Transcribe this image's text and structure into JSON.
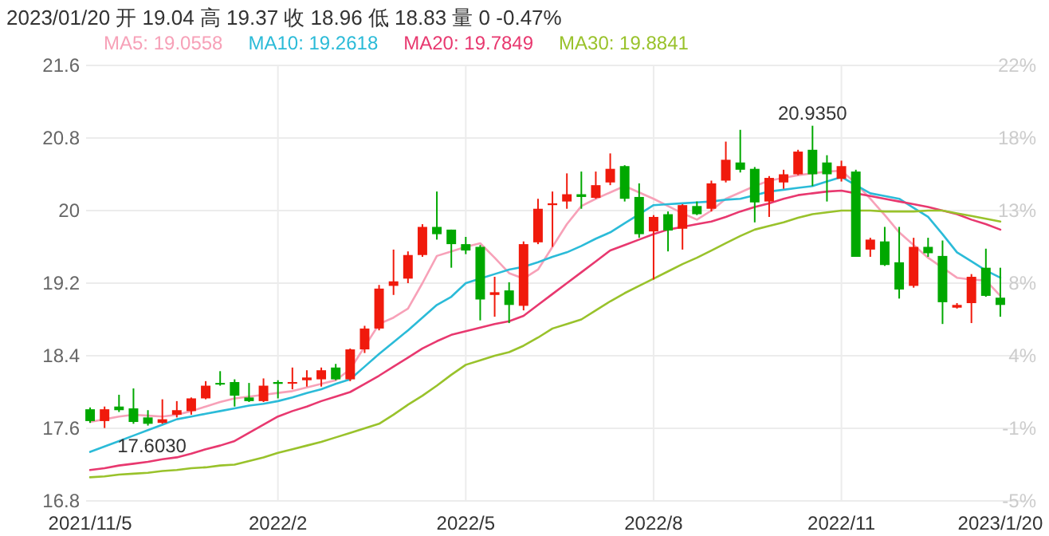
{
  "chart_data": {
    "type": "candlestick",
    "categories": [
      "2021/11/5",
      null,
      null,
      null,
      null,
      null,
      null,
      null,
      null,
      null,
      null,
      null,
      null,
      "2022/2",
      null,
      null,
      null,
      null,
      null,
      null,
      null,
      null,
      null,
      null,
      null,
      null,
      "2022/5",
      null,
      null,
      null,
      null,
      null,
      null,
      null,
      null,
      null,
      null,
      null,
      null,
      "2022/8",
      null,
      null,
      null,
      null,
      null,
      null,
      null,
      null,
      null,
      null,
      null,
      null,
      "2022/11",
      null,
      null,
      null,
      null,
      null,
      null,
      null,
      null,
      null,
      null,
      "2023/1/20"
    ],
    "ohlc": [
      [
        17.81,
        17.83,
        17.66,
        17.68
      ],
      [
        17.68,
        17.84,
        17.603,
        17.81
      ],
      [
        17.84,
        17.97,
        17.78,
        17.8
      ],
      [
        17.82,
        18.04,
        17.65,
        17.67
      ],
      [
        17.72,
        17.8,
        17.63,
        17.65
      ],
      [
        17.66,
        17.92,
        17.65,
        17.7
      ],
      [
        17.75,
        17.9,
        17.72,
        17.8
      ],
      [
        17.79,
        17.94,
        17.75,
        17.93
      ],
      [
        17.93,
        18.12,
        17.92,
        18.07
      ],
      [
        18.1,
        18.23,
        18.07,
        18.09
      ],
      [
        18.11,
        18.14,
        17.84,
        17.96
      ],
      [
        17.94,
        18.1,
        17.89,
        17.9
      ],
      [
        17.9,
        18.15,
        17.89,
        18.07
      ],
      [
        18.11,
        18.13,
        17.93,
        18.09
      ],
      [
        18.1,
        18.27,
        18.03,
        18.11
      ],
      [
        18.13,
        18.24,
        18.06,
        18.16
      ],
      [
        18.14,
        18.27,
        18.06,
        18.24
      ],
      [
        18.27,
        18.31,
        18.13,
        18.14
      ],
      [
        18.14,
        18.48,
        18.12,
        18.47
      ],
      [
        18.47,
        18.73,
        18.43,
        18.7
      ],
      [
        18.7,
        19.18,
        18.68,
        19.14
      ],
      [
        19.17,
        19.57,
        19.07,
        19.22
      ],
      [
        19.25,
        19.55,
        19.2,
        19.51
      ],
      [
        19.51,
        19.85,
        19.49,
        19.82
      ],
      [
        19.82,
        20.21,
        19.68,
        19.74
      ],
      [
        19.79,
        19.79,
        19.37,
        19.63
      ],
      [
        19.63,
        19.71,
        19.52,
        19.56
      ],
      [
        19.6,
        19.62,
        18.79,
        19.02
      ],
      [
        19.07,
        19.27,
        18.83,
        19.1
      ],
      [
        19.12,
        19.21,
        18.76,
        18.96
      ],
      [
        18.95,
        19.66,
        18.9,
        19.63
      ],
      [
        19.65,
        20.13,
        19.63,
        20.02
      ],
      [
        20.06,
        20.21,
        19.6,
        20.08
      ],
      [
        20.1,
        20.41,
        20.02,
        20.18
      ],
      [
        20.18,
        20.43,
        20.02,
        20.15
      ],
      [
        20.14,
        20.43,
        20.13,
        20.28
      ],
      [
        20.31,
        20.63,
        20.28,
        20.46
      ],
      [
        20.49,
        20.5,
        20.1,
        20.13
      ],
      [
        20.15,
        20.3,
        19.7,
        19.74
      ],
      [
        19.77,
        19.95,
        19.24,
        19.93
      ],
      [
        19.96,
        19.99,
        19.55,
        19.78
      ],
      [
        19.8,
        20.07,
        19.57,
        20.06
      ],
      [
        20.05,
        20.1,
        19.95,
        19.96
      ],
      [
        20.02,
        20.33,
        19.99,
        20.3
      ],
      [
        20.33,
        20.76,
        20.31,
        20.56
      ],
      [
        20.53,
        20.89,
        20.42,
        20.45
      ],
      [
        20.46,
        20.48,
        19.87,
        20.09
      ],
      [
        20.1,
        20.38,
        19.93,
        20.36
      ],
      [
        20.31,
        20.45,
        20.24,
        20.4
      ],
      [
        20.4,
        20.67,
        20.39,
        20.65
      ],
      [
        20.67,
        20.935,
        20.27,
        20.4
      ],
      [
        20.53,
        20.61,
        20.1,
        20.4
      ],
      [
        20.35,
        20.55,
        20.32,
        20.49
      ],
      [
        20.43,
        20.45,
        19.49,
        19.49
      ],
      [
        19.57,
        19.7,
        19.49,
        19.68
      ],
      [
        19.66,
        19.82,
        19.39,
        19.4
      ],
      [
        19.43,
        19.82,
        19.03,
        19.13
      ],
      [
        19.17,
        19.7,
        19.15,
        19.6
      ],
      [
        19.6,
        19.7,
        19.49,
        19.53
      ],
      [
        19.5,
        19.67,
        18.75,
        18.99
      ],
      [
        18.93,
        18.98,
        18.92,
        18.96
      ],
      [
        18.98,
        19.3,
        18.76,
        19.27
      ],
      [
        19.37,
        19.58,
        19.05,
        19.06
      ],
      [
        19.04,
        19.37,
        18.83,
        18.96
      ]
    ],
    "colors": [
      "#00a800",
      "#f01a0c",
      "#00a800",
      "#00a800",
      "#00a800",
      "#f01a0c",
      "#f01a0c",
      "#f01a0c",
      "#f01a0c",
      "#00a800",
      "#00a800",
      "#00a800",
      "#f01a0c",
      "#00a800",
      "#f01a0c",
      "#f01a0c",
      "#f01a0c",
      "#00a800",
      "#f01a0c",
      "#f01a0c",
      "#f01a0c",
      "#f01a0c",
      "#f01a0c",
      "#f01a0c",
      "#00a800",
      "#00a800",
      "#00a800",
      "#00a800",
      "#f01a0c",
      "#00a800",
      "#f01a0c",
      "#f01a0c",
      "#f01a0c",
      "#f01a0c",
      "#00a800",
      "#f01a0c",
      "#f01a0c",
      "#00a800",
      "#00a800",
      "#f01a0c",
      "#00a800",
      "#f01a0c",
      "#00a800",
      "#f01a0c",
      "#f01a0c",
      "#00a800",
      "#00a800",
      "#f01a0c",
      "#f01a0c",
      "#f01a0c",
      "#00a800",
      "#00a800",
      "#f01a0c",
      "#00a800",
      "#f01a0c",
      "#00a800",
      "#00a800",
      "#f01a0c",
      "#00a800",
      "#00a800",
      "#f01a0c",
      "#f01a0c",
      "#00a800",
      "#00a800"
    ],
    "series": [
      {
        "name": "MA5: 19.0558",
        "type": "line",
        "color": "#f7a1b8",
        "values": [
          17.67,
          17.7,
          17.73,
          17.75,
          17.74,
          17.73,
          17.75,
          17.79,
          17.84,
          17.89,
          17.93,
          17.95,
          17.97,
          17.99,
          18.01,
          18.05,
          18.09,
          18.13,
          18.25,
          18.5,
          18.75,
          18.82,
          18.92,
          19.2,
          19.5,
          19.55,
          19.6,
          19.64,
          19.48,
          19.31,
          19.25,
          19.35,
          19.6,
          19.85,
          20.05,
          20.13,
          20.2,
          20.27,
          20.2,
          20.13,
          20.05,
          19.97,
          19.9,
          20.0,
          20.13,
          20.2,
          20.27,
          20.33,
          20.36,
          20.39,
          20.41,
          20.43,
          20.44,
          20.3,
          20.13,
          19.95,
          19.76,
          19.62,
          19.48,
          19.37,
          19.26,
          19.24,
          19.23,
          19.06
        ]
      },
      {
        "name": "MA10: 19.2618",
        "type": "line",
        "color": "#2bbbd8",
        "values": [
          17.34,
          17.4,
          17.46,
          17.52,
          17.58,
          17.64,
          17.7,
          17.73,
          17.76,
          17.79,
          17.82,
          17.85,
          17.87,
          17.9,
          17.94,
          17.99,
          18.03,
          18.09,
          18.14,
          18.28,
          18.42,
          18.55,
          18.68,
          18.82,
          18.96,
          19.05,
          19.2,
          19.25,
          19.3,
          19.35,
          19.38,
          19.43,
          19.49,
          19.54,
          19.61,
          19.69,
          19.76,
          19.86,
          19.96,
          20.06,
          20.07,
          20.08,
          20.09,
          20.1,
          20.12,
          20.13,
          20.17,
          20.21,
          20.23,
          20.25,
          20.27,
          20.32,
          20.37,
          20.28,
          20.19,
          20.16,
          20.13,
          20.03,
          19.93,
          19.74,
          19.54,
          19.44,
          19.34,
          19.26
        ]
      },
      {
        "name": "MA20: 19.7849",
        "type": "line",
        "color": "#e8386f",
        "values": [
          17.14,
          17.16,
          17.19,
          17.21,
          17.23,
          17.26,
          17.28,
          17.32,
          17.37,
          17.41,
          17.46,
          17.55,
          17.64,
          17.73,
          17.79,
          17.84,
          17.9,
          17.95,
          18.0,
          18.09,
          18.18,
          18.28,
          18.38,
          18.48,
          18.56,
          18.63,
          18.67,
          18.71,
          18.75,
          18.78,
          18.84,
          18.96,
          19.08,
          19.2,
          19.32,
          19.44,
          19.56,
          19.62,
          19.68,
          19.74,
          19.79,
          19.82,
          19.85,
          19.88,
          19.93,
          19.99,
          20.04,
          20.08,
          20.13,
          20.17,
          20.19,
          20.21,
          20.22,
          20.19,
          20.16,
          20.13,
          20.1,
          20.07,
          20.04,
          20.0,
          19.96,
          19.9,
          19.85,
          19.79
        ]
      },
      {
        "name": "MA30: 19.8841",
        "type": "line",
        "color": "#99c22b",
        "values": [
          17.06,
          17.07,
          17.09,
          17.1,
          17.11,
          17.13,
          17.14,
          17.16,
          17.17,
          17.19,
          17.2,
          17.24,
          17.28,
          17.33,
          17.37,
          17.41,
          17.45,
          17.5,
          17.55,
          17.6,
          17.65,
          17.75,
          17.86,
          17.96,
          18.07,
          18.19,
          18.3,
          18.35,
          18.4,
          18.44,
          18.51,
          18.6,
          18.7,
          18.75,
          18.8,
          18.9,
          19.0,
          19.09,
          19.17,
          19.25,
          19.33,
          19.41,
          19.48,
          19.56,
          19.64,
          19.72,
          19.79,
          19.83,
          19.87,
          19.92,
          19.96,
          19.98,
          20.0,
          20.0,
          20.0,
          19.99,
          19.99,
          19.99,
          20.0,
          20.0,
          19.97,
          19.94,
          19.91,
          19.88
        ]
      }
    ],
    "ylim": [
      16.8,
      21.6
    ],
    "yticks": [
      16.8,
      17.6,
      18.4,
      19.2,
      20,
      20.8,
      21.6
    ],
    "y2lim": [
      -5.08,
      22.03
    ],
    "y2ticks": [
      {
        "value": -5.08,
        "label": "-5%"
      },
      {
        "value": -0.56,
        "label": "-1%"
      },
      {
        "value": 3.95,
        "label": "4%"
      },
      {
        "value": 8.47,
        "label": "8%"
      },
      {
        "value": 12.99,
        "label": "13%"
      },
      {
        "value": 17.51,
        "label": "18%"
      },
      {
        "value": 22.03,
        "label": "22%"
      }
    ],
    "grid": true,
    "legend": "top",
    "annotations": [
      "2023/01/20 开 19.04 高 19.37 收 18.96 低 18.83 量 0 -0.47%",
      {
        "text": "20.9350",
        "y": 20.935
      },
      {
        "text": "17.6030",
        "y": 17.603
      }
    ]
  }
}
